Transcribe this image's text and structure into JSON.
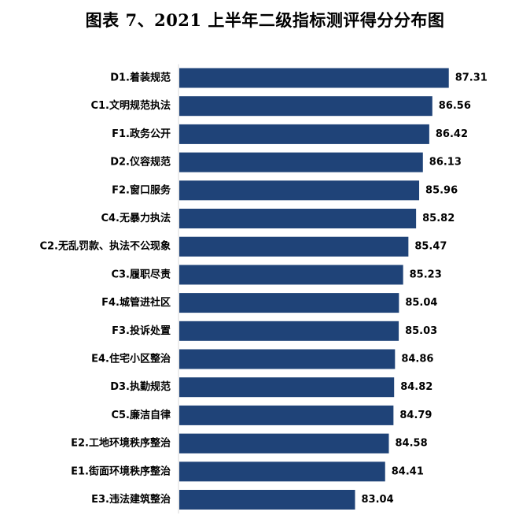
{
  "chart_data": {
    "type": "bar",
    "orientation": "horizontal",
    "title": "图表 7、2021 上半年二级指标测评得分分布图",
    "categories": [
      "D1.着装规范",
      "C1.文明规范执法",
      "F1.政务公开",
      "D2.仪容规范",
      "F2.窗口服务",
      "C4.无暴力执法",
      "C2.无乱罚款、执法不公现象",
      "C3.履职尽责",
      "F4.城管进社区",
      "F3.投诉处置",
      "E4.住宅小区整治",
      "D3.执勤规范",
      "C5.廉洁自律",
      "E2.工地环境秩序整治",
      "E1.街面环境秩序整治",
      "E3.违法建筑整治"
    ],
    "values": [
      87.31,
      86.56,
      86.42,
      86.13,
      85.96,
      85.82,
      85.47,
      85.23,
      85.04,
      85.03,
      84.86,
      84.82,
      84.79,
      84.58,
      84.41,
      83.04
    ],
    "value_labels": [
      "87.31",
      "86.56",
      "86.42",
      "86.13",
      "85.96",
      "85.82",
      "85.47",
      "85.23",
      "85.04",
      "85.03",
      "84.86",
      "84.82",
      "84.79",
      "84.58",
      "84.41",
      "83.04"
    ],
    "xlim": [
      75,
      88
    ],
    "bar_color": "#1f4378",
    "grid": false,
    "legend": "none"
  }
}
